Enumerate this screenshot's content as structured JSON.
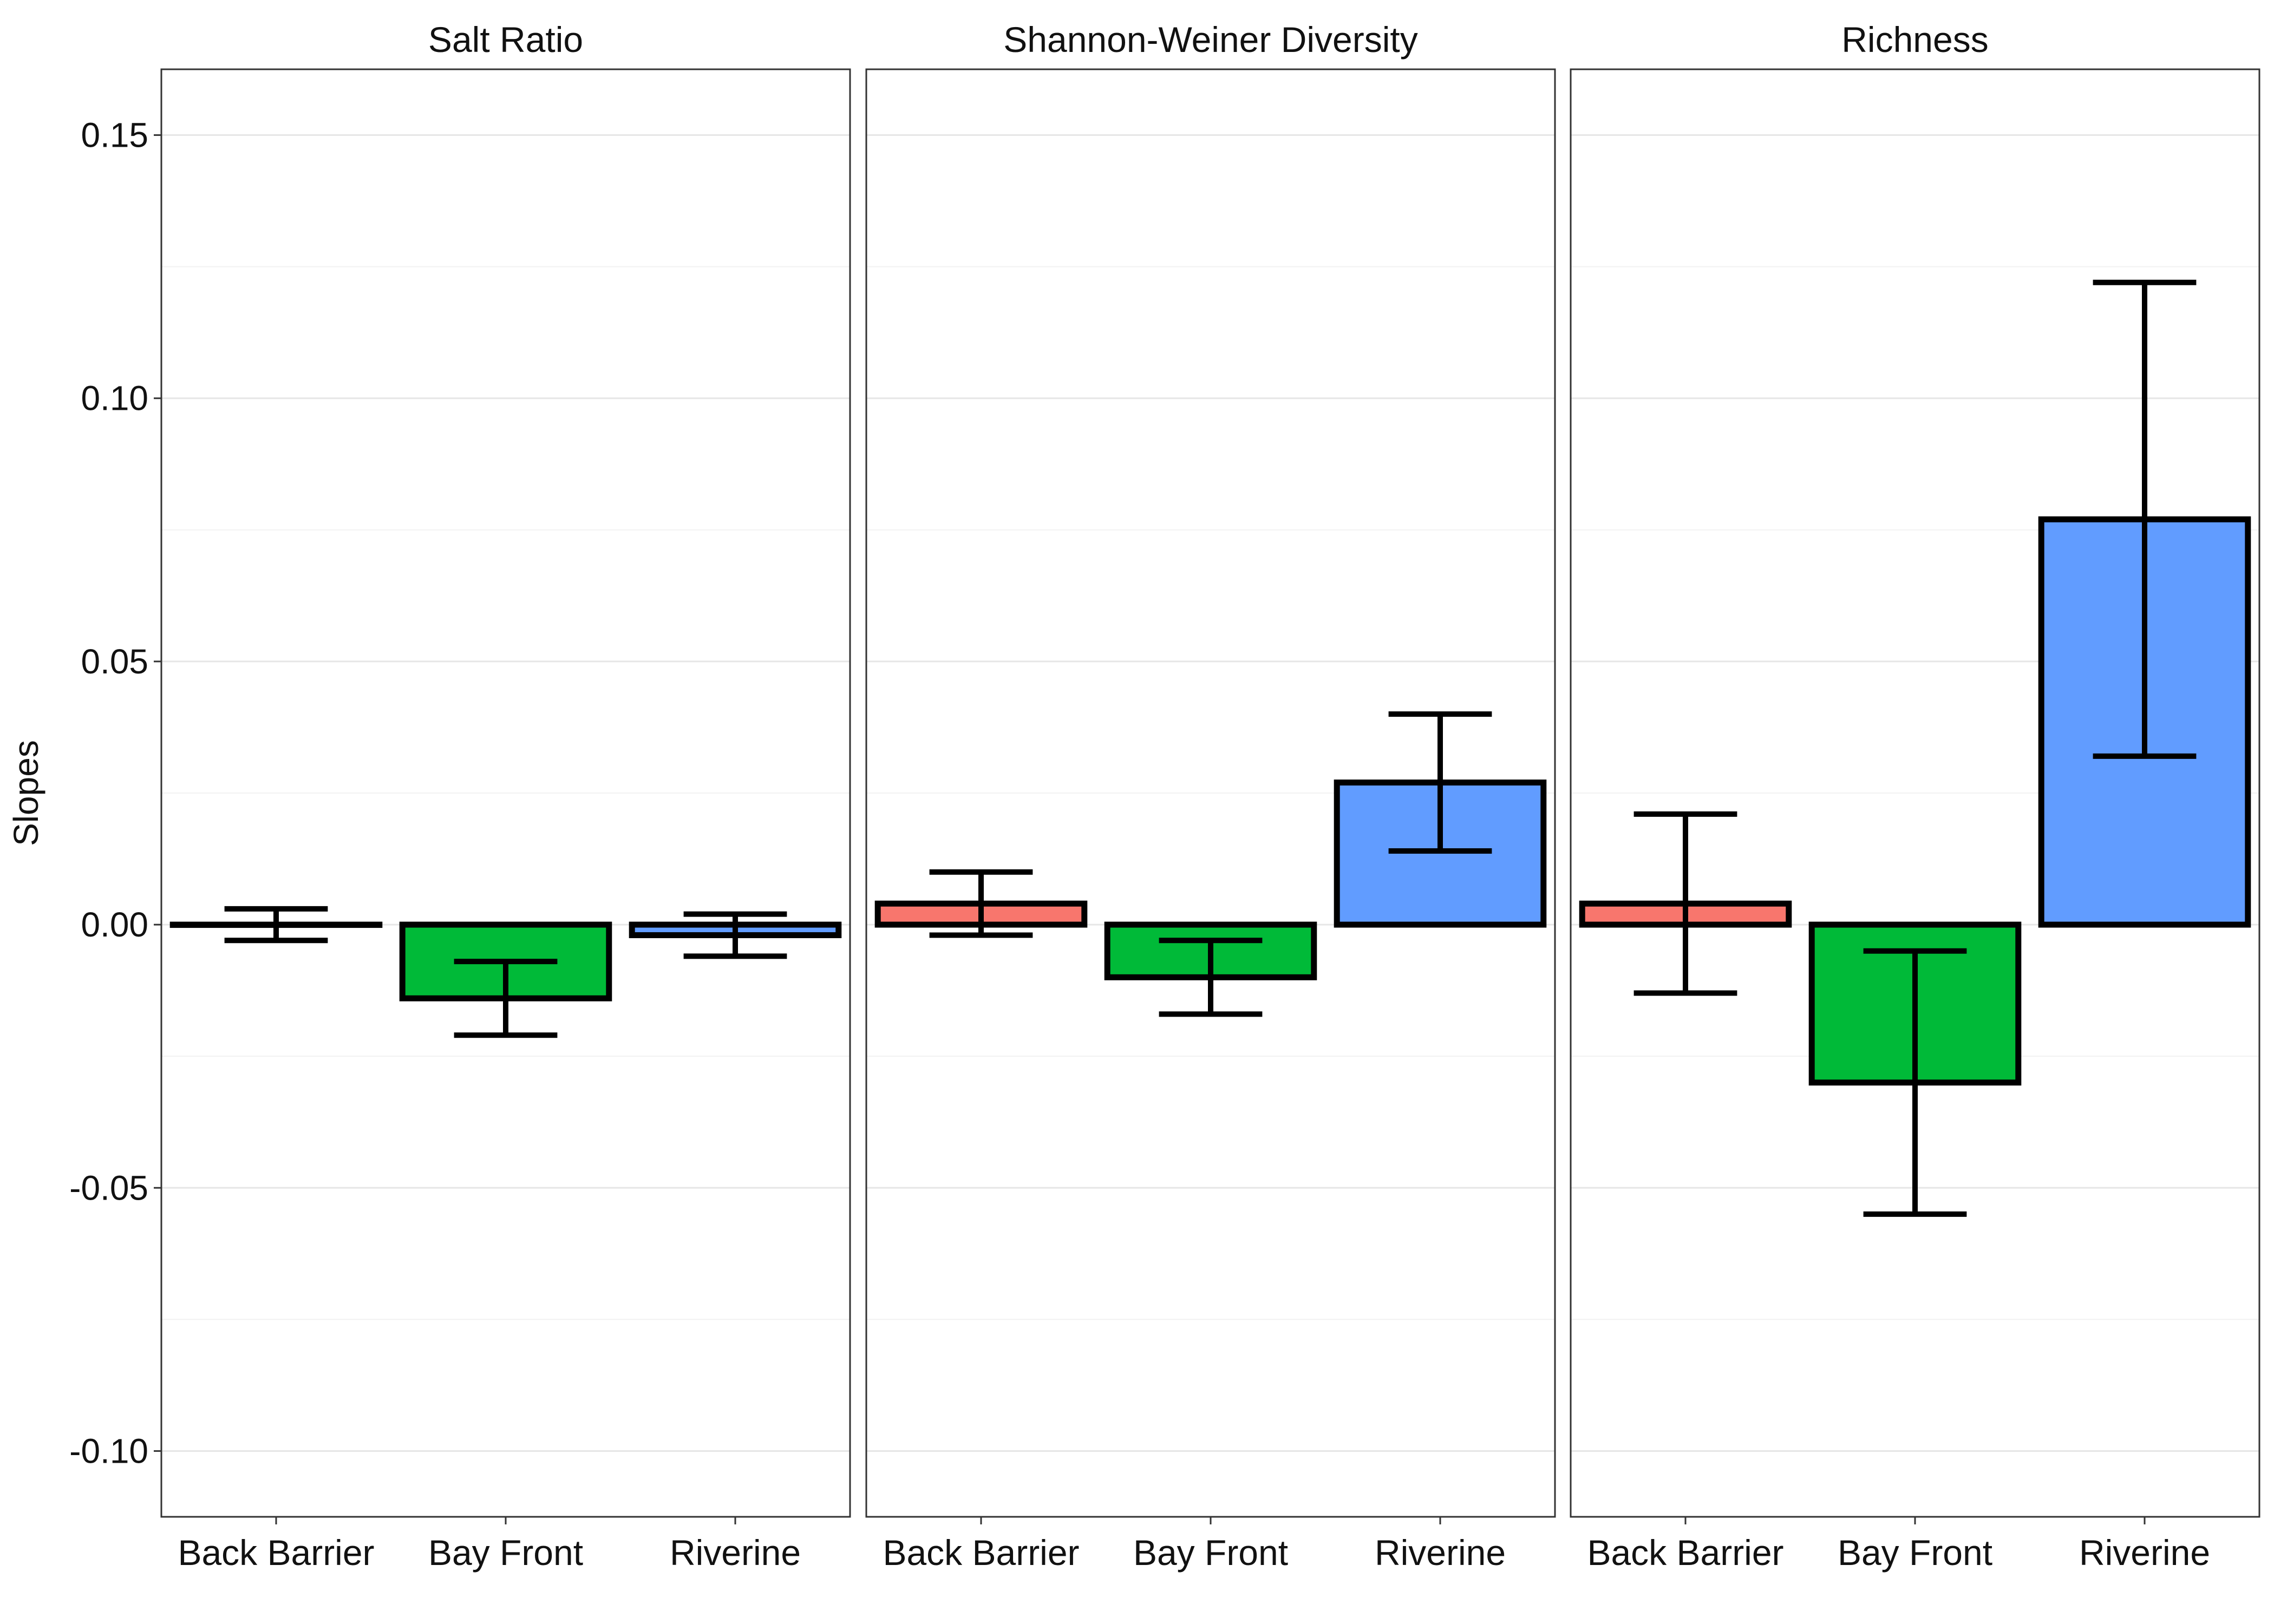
{
  "chart_data": {
    "type": "bar",
    "ylabel": "Slopes",
    "ylim": [
      -0.1125,
      0.1625
    ],
    "yticks": [
      -0.1,
      -0.05,
      0.0,
      0.05,
      0.1,
      0.15
    ],
    "ytick_labels": [
      "-0.10",
      "-0.05",
      "0.00",
      "0.05",
      "0.10",
      "0.15"
    ],
    "grid": "horizontal",
    "legend": "none",
    "categories": [
      "Back Barrier",
      "Bay Front",
      "Riverine"
    ],
    "colors": {
      "Back Barrier": "#F8766D",
      "Bay Front": "#00BA38",
      "Riverine": "#619CFF"
    },
    "panels": [
      {
        "title": "Salt Ratio",
        "values": [
          0.0,
          -0.014,
          -0.002
        ],
        "error_low": [
          -0.003,
          -0.021,
          -0.006
        ],
        "error_high": [
          0.003,
          -0.007,
          0.002
        ]
      },
      {
        "title": "Shannon-Weiner Diversity",
        "values": [
          0.004,
          -0.01,
          0.027
        ],
        "error_low": [
          -0.002,
          -0.017,
          0.014
        ],
        "error_high": [
          0.01,
          -0.003,
          0.04
        ]
      },
      {
        "title": "Richness",
        "values": [
          0.004,
          -0.03,
          0.077
        ],
        "error_low": [
          -0.013,
          -0.055,
          0.032
        ],
        "error_high": [
          0.021,
          -0.005,
          0.122
        ]
      }
    ]
  }
}
